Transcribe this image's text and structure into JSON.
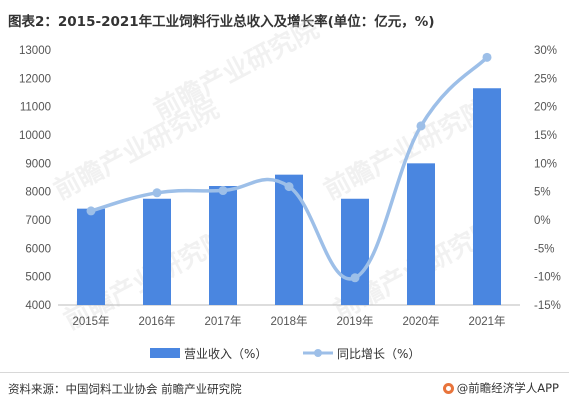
{
  "title": "图表2：2015-2021年工业饲料行业总收入及增长率(单位：亿元，%)",
  "source": "资料来源：中国饲料工业协会 前瞻产业研究院",
  "brand": "@前瞻经济学人APP",
  "watermark": "前瞻产业研究院",
  "colors": {
    "bar": "#4a86e0",
    "line": "#9dbfe8",
    "axis": "#bbbbbb"
  },
  "chart_data": {
    "type": "bar",
    "categories": [
      "2015年",
      "2016年",
      "2017年",
      "2018年",
      "2019年",
      "2020年",
      "2021年"
    ],
    "series": [
      {
        "name": "营业收入（%）",
        "type": "bar",
        "axis": "left",
        "values": [
          7400,
          7750,
          8200,
          8600,
          7750,
          9000,
          11650
        ]
      },
      {
        "name": "同比增长（%）",
        "type": "line",
        "axis": "right",
        "values": [
          1.6,
          4.8,
          5.2,
          5.9,
          -10.2,
          16.6,
          28.7
        ]
      }
    ],
    "left_axis": {
      "ylim": [
        4000,
        13000
      ],
      "ticks": [
        "4000",
        "5000",
        "6000",
        "7000",
        "8000",
        "9000",
        "10000",
        "11000",
        "12000",
        "13000"
      ]
    },
    "right_axis": {
      "ylim": [
        -15,
        30
      ],
      "ticks": [
        "-15%",
        "-10%",
        "-5%",
        "0%",
        "5%",
        "10%",
        "15%",
        "20%",
        "25%",
        "30%"
      ]
    },
    "legend_position": "bottom"
  }
}
